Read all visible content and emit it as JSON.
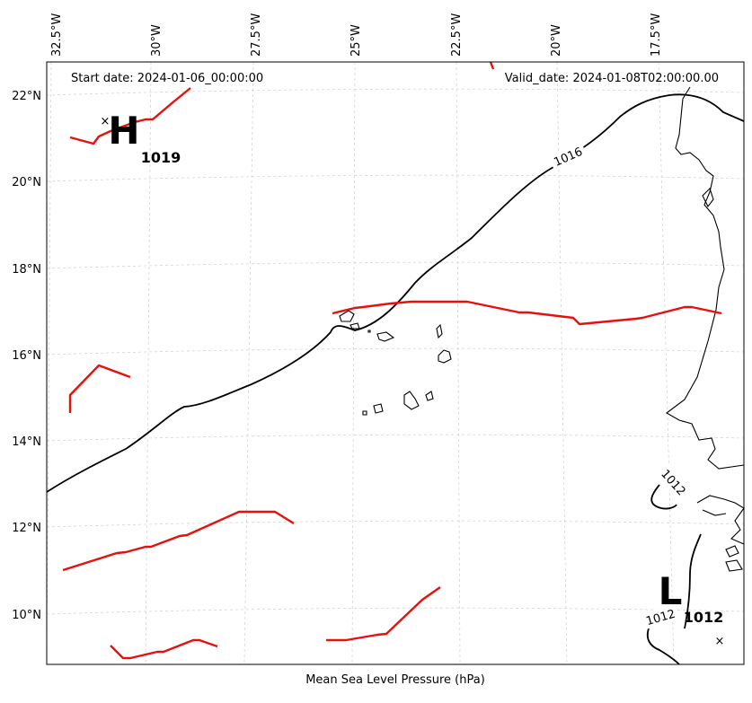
{
  "info": {
    "start_date": "Start date: 2024-01-06_00:00:00",
    "valid_date": "Valid_date: 2024-01-08T02:00:00.00"
  },
  "caption": "Mean Sea Level Pressure (hPa)",
  "axes": {
    "lon_ticks": [
      "32.5°W",
      "30°W",
      "27.5°W",
      "25°W",
      "22.5°W",
      "20°W",
      "17.5°W"
    ],
    "lat_ticks": [
      "22°N",
      "20°N",
      "18°N",
      "16°N",
      "14°N",
      "12°N",
      "10°N"
    ]
  },
  "isobar_labels": {
    "c1016": "1016",
    "c1012a": "1012",
    "c1012b": "1012"
  },
  "centers": {
    "high": {
      "letter": "H",
      "value": "1019",
      "marker": "×"
    },
    "low": {
      "letter": "L",
      "value": "1012",
      "marker": "×"
    }
  },
  "colors": {
    "front": "#e8100c",
    "isobar": "#000000",
    "grid": "#cfcfcf"
  }
}
